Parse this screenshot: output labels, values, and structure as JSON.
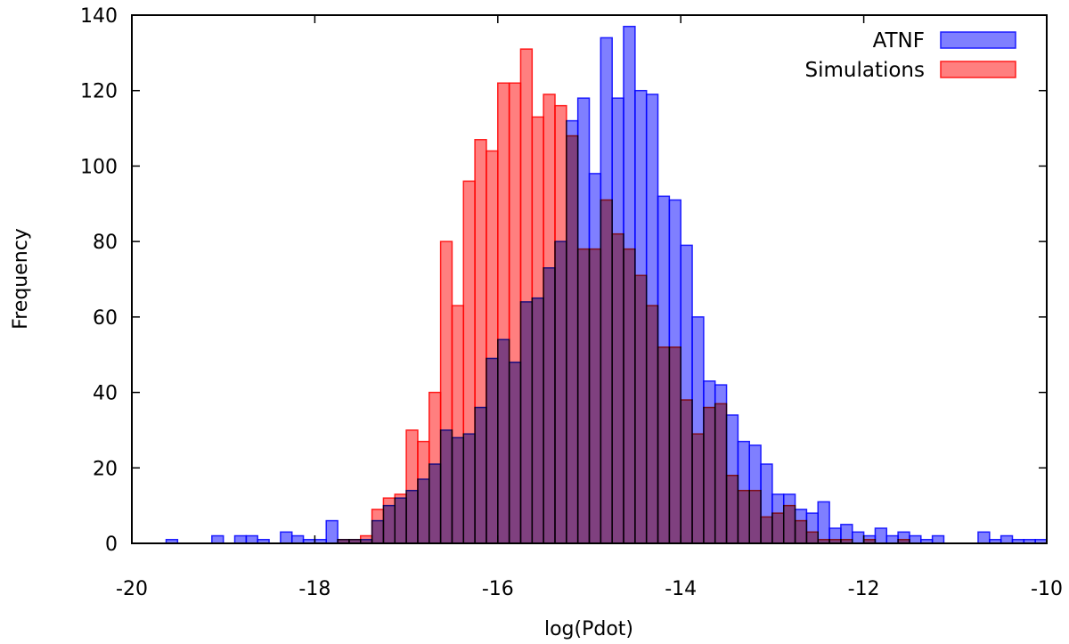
{
  "chart_data": {
    "type": "bar",
    "title": "",
    "xlabel": "log(Pdot)",
    "ylabel": "Frequency",
    "xlim": [
      -20,
      -10
    ],
    "ylim": [
      0,
      140
    ],
    "x_ticks": [
      "-20",
      "-18",
      "-16",
      "-14",
      "-12",
      "-10"
    ],
    "y_ticks": [
      "0",
      "20",
      "40",
      "60",
      "80",
      "100",
      "120",
      "140"
    ],
    "bin_width": 0.125,
    "grid": false,
    "legend_position": "top-right",
    "series": [
      {
        "name": "ATNF",
        "fill": "#7f7fff",
        "stroke": "#1c1cff",
        "bins": [
          [
            -19.5625,
            1
          ],
          [
            -19.0625,
            2
          ],
          [
            -18.8125,
            2
          ],
          [
            -18.6875,
            2
          ],
          [
            -18.5625,
            1
          ],
          [
            -18.3125,
            3
          ],
          [
            -18.1875,
            2
          ],
          [
            -18.0625,
            1
          ],
          [
            -17.9375,
            1
          ],
          [
            -17.8125,
            6
          ],
          [
            -17.6875,
            1
          ],
          [
            -17.5625,
            1
          ],
          [
            -17.4375,
            1
          ],
          [
            -17.3125,
            6
          ],
          [
            -17.1875,
            10
          ],
          [
            -17.0625,
            12
          ],
          [
            -16.9375,
            14
          ],
          [
            -16.8125,
            17
          ],
          [
            -16.6875,
            21
          ],
          [
            -16.5625,
            30
          ],
          [
            -16.4375,
            28
          ],
          [
            -16.3125,
            29
          ],
          [
            -16.1875,
            36
          ],
          [
            -16.0625,
            49
          ],
          [
            -15.9375,
            54
          ],
          [
            -15.8125,
            48
          ],
          [
            -15.6875,
            64
          ],
          [
            -15.5625,
            65
          ],
          [
            -15.4375,
            73
          ],
          [
            -15.3125,
            80
          ],
          [
            -15.1875,
            112
          ],
          [
            -15.0625,
            118
          ],
          [
            -14.9375,
            98
          ],
          [
            -14.8125,
            134
          ],
          [
            -14.6875,
            118
          ],
          [
            -14.5625,
            137
          ],
          [
            -14.4375,
            120
          ],
          [
            -14.3125,
            119
          ],
          [
            -14.1875,
            92
          ],
          [
            -14.0625,
            91
          ],
          [
            -13.9375,
            79
          ],
          [
            -13.8125,
            60
          ],
          [
            -13.6875,
            43
          ],
          [
            -13.5625,
            42
          ],
          [
            -13.4375,
            34
          ],
          [
            -13.3125,
            27
          ],
          [
            -13.1875,
            26
          ],
          [
            -13.0625,
            21
          ],
          [
            -12.9375,
            13
          ],
          [
            -12.8125,
            13
          ],
          [
            -12.6875,
            9
          ],
          [
            -12.5625,
            8
          ],
          [
            -12.4375,
            11
          ],
          [
            -12.3125,
            4
          ],
          [
            -12.1875,
            5
          ],
          [
            -12.0625,
            3
          ],
          [
            -11.9375,
            2
          ],
          [
            -11.8125,
            4
          ],
          [
            -11.6875,
            2
          ],
          [
            -11.5625,
            3
          ],
          [
            -11.4375,
            2
          ],
          [
            -11.3125,
            1
          ],
          [
            -11.1875,
            2
          ],
          [
            -10.6875,
            3
          ],
          [
            -10.5625,
            1
          ],
          [
            -10.4375,
            2
          ],
          [
            -10.3125,
            1
          ],
          [
            -10.1875,
            1
          ],
          [
            -10.0625,
            1
          ]
        ]
      },
      {
        "name": "Simulations",
        "fill": "#ff7f7f",
        "stroke": "#ff1c1c",
        "bins": [
          [
            -17.6875,
            1
          ],
          [
            -17.5625,
            1
          ],
          [
            -17.4375,
            2
          ],
          [
            -17.3125,
            9
          ],
          [
            -17.1875,
            12
          ],
          [
            -17.0625,
            13
          ],
          [
            -16.9375,
            30
          ],
          [
            -16.8125,
            27
          ],
          [
            -16.6875,
            40
          ],
          [
            -16.5625,
            80
          ],
          [
            -16.4375,
            63
          ],
          [
            -16.3125,
            96
          ],
          [
            -16.1875,
            107
          ],
          [
            -16.0625,
            104
          ],
          [
            -15.9375,
            122
          ],
          [
            -15.8125,
            122
          ],
          [
            -15.6875,
            131
          ],
          [
            -15.5625,
            113
          ],
          [
            -15.4375,
            119
          ],
          [
            -15.3125,
            116
          ],
          [
            -15.1875,
            108
          ],
          [
            -15.0625,
            78
          ],
          [
            -14.9375,
            78
          ],
          [
            -14.8125,
            91
          ],
          [
            -14.6875,
            82
          ],
          [
            -14.5625,
            78
          ],
          [
            -14.4375,
            71
          ],
          [
            -14.3125,
            63
          ],
          [
            -14.1875,
            52
          ],
          [
            -14.0625,
            52
          ],
          [
            -13.9375,
            38
          ],
          [
            -13.8125,
            29
          ],
          [
            -13.6875,
            36
          ],
          [
            -13.5625,
            37
          ],
          [
            -13.4375,
            18
          ],
          [
            -13.3125,
            14
          ],
          [
            -13.1875,
            14
          ],
          [
            -13.0625,
            7
          ],
          [
            -12.9375,
            8
          ],
          [
            -12.8125,
            10
          ],
          [
            -12.6875,
            6
          ],
          [
            -12.5625,
            3
          ],
          [
            -12.4375,
            1
          ],
          [
            -12.3125,
            1
          ],
          [
            -12.1875,
            1
          ],
          [
            -11.9375,
            1
          ],
          [
            -11.5625,
            1
          ]
        ]
      }
    ]
  }
}
